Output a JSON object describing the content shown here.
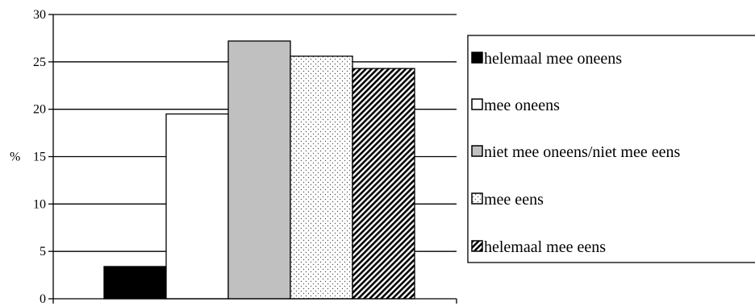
{
  "chart_data": {
    "type": "bar",
    "ylabel": "%",
    "ylim": [
      0,
      30
    ],
    "yticks": [
      "0",
      "5",
      "10",
      "15",
      "20",
      "25",
      "30"
    ],
    "grid": true,
    "legend_position": "right",
    "series": [
      {
        "name": "helemaal mee oneens",
        "value": 3.4,
        "fill": "solid-black"
      },
      {
        "name": "mee oneens",
        "value": 19.5,
        "fill": "white"
      },
      {
        "name": "niet mee oneens/niet mee eens",
        "value": 27.2,
        "fill": "gray"
      },
      {
        "name": "mee eens",
        "value": 25.6,
        "fill": "dots"
      },
      {
        "name": "helemaal mee eens",
        "value": 24.3,
        "fill": "diagonal-hatch"
      }
    ]
  },
  "colors": {
    "black": "#000000",
    "white": "#ffffff",
    "gray": "#c0c0c0"
  }
}
